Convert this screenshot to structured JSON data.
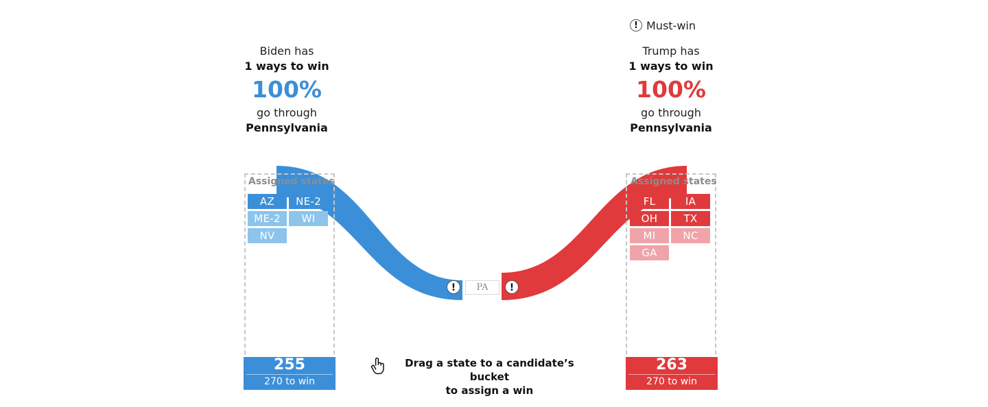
{
  "legend": {
    "icon": "exclamation-icon",
    "label": "Must-win"
  },
  "biden": {
    "line1": "Biden has",
    "line2": "1 ways to win",
    "percent": "100%",
    "line3": "go through",
    "state": "Pennsylvania",
    "color": "#3b8fd8",
    "bucket_title": "Assigned states",
    "chips": [
      {
        "label": "AZ",
        "color": "#3b8fd8"
      },
      {
        "label": "NE-2",
        "color": "#3b8fd8"
      },
      {
        "label": "ME-2",
        "color": "#8cc4ec"
      },
      {
        "label": "WI",
        "color": "#8cc4ec"
      },
      {
        "label": "NV",
        "color": "#8cc4ec"
      }
    ],
    "votes": "255",
    "goal": "270 to win"
  },
  "trump": {
    "line1": "Trump has",
    "line2": "1 ways to win",
    "percent": "100%",
    "line3": "go through",
    "state": "Pennsylvania",
    "color": "#e03a3c",
    "bucket_title": "Assigned states",
    "chips": [
      {
        "label": "FL",
        "color": "#e03a3c"
      },
      {
        "label": "IA",
        "color": "#e03a3c"
      },
      {
        "label": "OH",
        "color": "#e03a3c"
      },
      {
        "label": "TX",
        "color": "#e03a3c"
      },
      {
        "label": "MI",
        "color": "#f0a3a8"
      },
      {
        "label": "NC",
        "color": "#f0a3a8"
      },
      {
        "label": "GA",
        "color": "#f0a3a8"
      }
    ],
    "votes": "263",
    "goal": "270 to win"
  },
  "undecided": {
    "state": "PA",
    "marker": "!"
  },
  "hint": {
    "icon": "hand-pointer-icon",
    "line1": "Drag a state to a candidate’s bucket",
    "line2": "to assign a win"
  }
}
